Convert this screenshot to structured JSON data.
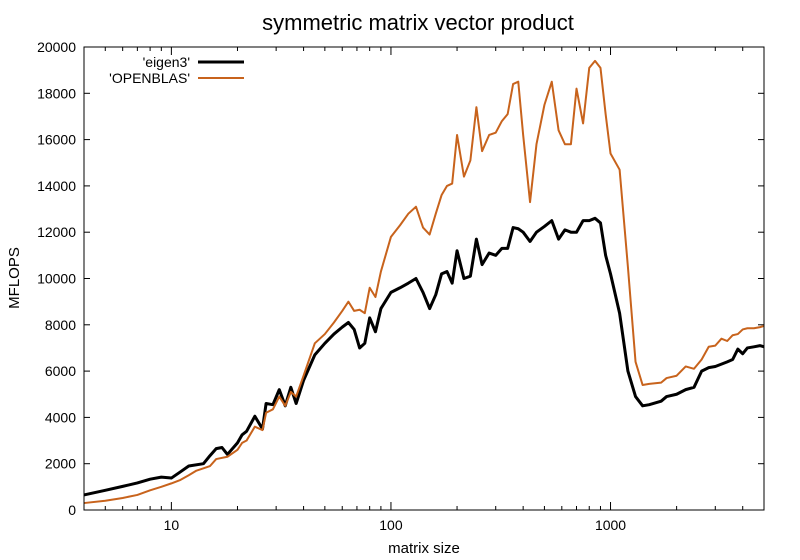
{
  "chart_data": {
    "type": "line",
    "title": "symmetric matrix vector product",
    "xlabel": "matrix size",
    "ylabel": "MFLOPS",
    "x_scale": "log",
    "xlim": [
      4,
      5000
    ],
    "ylim": [
      0,
      20000
    ],
    "x_ticks": [
      10,
      100,
      1000
    ],
    "x_tick_labels": [
      "10",
      "100",
      "1000"
    ],
    "y_ticks": [
      0,
      2000,
      4000,
      6000,
      8000,
      10000,
      12000,
      14000,
      16000,
      18000,
      20000
    ],
    "y_tick_labels": [
      "0",
      "2000",
      "4000",
      "6000",
      "8000",
      "10000",
      "12000",
      "14000",
      "16000",
      "18000",
      "20000"
    ],
    "grid": false,
    "legend_position": "top-left",
    "series": [
      {
        "name": "'eigen3'",
        "color": "#000000",
        "points": [
          [
            4,
            650
          ],
          [
            5,
            850
          ],
          [
            6,
            1020
          ],
          [
            7,
            1170
          ],
          [
            8,
            1330
          ],
          [
            9,
            1420
          ],
          [
            10,
            1380
          ],
          [
            11,
            1650
          ],
          [
            12,
            1900
          ],
          [
            14,
            2000
          ],
          [
            15,
            2350
          ],
          [
            16,
            2650
          ],
          [
            17,
            2700
          ],
          [
            18,
            2400
          ],
          [
            20,
            2900
          ],
          [
            21,
            3250
          ],
          [
            22,
            3400
          ],
          [
            24,
            4050
          ],
          [
            26,
            3500
          ],
          [
            27,
            4600
          ],
          [
            29,
            4550
          ],
          [
            31,
            5200
          ],
          [
            33,
            4500
          ],
          [
            35,
            5300
          ],
          [
            37,
            4600
          ],
          [
            40,
            5600
          ],
          [
            45,
            6700
          ],
          [
            50,
            7200
          ],
          [
            55,
            7600
          ],
          [
            60,
            7900
          ],
          [
            64,
            8100
          ],
          [
            68,
            7800
          ],
          [
            72,
            7000
          ],
          [
            76,
            7200
          ],
          [
            80,
            8300
          ],
          [
            85,
            7700
          ],
          [
            90,
            8700
          ],
          [
            100,
            9400
          ],
          [
            110,
            9600
          ],
          [
            120,
            9800
          ],
          [
            130,
            10000
          ],
          [
            140,
            9400
          ],
          [
            150,
            8700
          ],
          [
            160,
            9300
          ],
          [
            170,
            10200
          ],
          [
            180,
            10300
          ],
          [
            190,
            9800
          ],
          [
            200,
            11200
          ],
          [
            215,
            10000
          ],
          [
            230,
            10100
          ],
          [
            245,
            11700
          ],
          [
            260,
            10600
          ],
          [
            280,
            11100
          ],
          [
            300,
            11000
          ],
          [
            320,
            11300
          ],
          [
            340,
            11300
          ],
          [
            360,
            12200
          ],
          [
            380,
            12150
          ],
          [
            400,
            12000
          ],
          [
            430,
            11600
          ],
          [
            460,
            12000
          ],
          [
            500,
            12250
          ],
          [
            540,
            12500
          ],
          [
            580,
            11700
          ],
          [
            620,
            12100
          ],
          [
            660,
            12000
          ],
          [
            700,
            12000
          ],
          [
            750,
            12500
          ],
          [
            800,
            12500
          ],
          [
            850,
            12600
          ],
          [
            900,
            12400
          ],
          [
            950,
            11000
          ],
          [
            1000,
            10200
          ],
          [
            1100,
            8500
          ],
          [
            1200,
            6000
          ],
          [
            1300,
            4900
          ],
          [
            1400,
            4500
          ],
          [
            1500,
            4550
          ],
          [
            1700,
            4700
          ],
          [
            1800,
            4900
          ],
          [
            2000,
            5000
          ],
          [
            2200,
            5200
          ],
          [
            2400,
            5300
          ],
          [
            2600,
            6000
          ],
          [
            2800,
            6150
          ],
          [
            3000,
            6200
          ],
          [
            3200,
            6300
          ],
          [
            3400,
            6400
          ],
          [
            3600,
            6500
          ],
          [
            3800,
            6950
          ],
          [
            4000,
            6750
          ],
          [
            4200,
            7000
          ],
          [
            4500,
            7050
          ],
          [
            4800,
            7100
          ],
          [
            5000,
            7050
          ]
        ]
      },
      {
        "name": "'OPENBLAS'",
        "color": "#c8631c",
        "points": [
          [
            4,
            300
          ],
          [
            5,
            400
          ],
          [
            6,
            520
          ],
          [
            7,
            650
          ],
          [
            8,
            850
          ],
          [
            9,
            1000
          ],
          [
            10,
            1150
          ],
          [
            11,
            1300
          ],
          [
            12,
            1500
          ],
          [
            13,
            1700
          ],
          [
            14,
            1800
          ],
          [
            15,
            1900
          ],
          [
            16,
            2200
          ],
          [
            18,
            2300
          ],
          [
            20,
            2600
          ],
          [
            21,
            2900
          ],
          [
            22,
            3000
          ],
          [
            24,
            3600
          ],
          [
            26,
            3450
          ],
          [
            27,
            4200
          ],
          [
            29,
            4350
          ],
          [
            31,
            4900
          ],
          [
            33,
            4500
          ],
          [
            35,
            5100
          ],
          [
            37,
            4900
          ],
          [
            40,
            5800
          ],
          [
            45,
            7200
          ],
          [
            50,
            7600
          ],
          [
            55,
            8100
          ],
          [
            60,
            8600
          ],
          [
            64,
            9000
          ],
          [
            68,
            8600
          ],
          [
            72,
            8650
          ],
          [
            76,
            8500
          ],
          [
            80,
            9600
          ],
          [
            85,
            9200
          ],
          [
            90,
            10300
          ],
          [
            100,
            11800
          ],
          [
            110,
            12300
          ],
          [
            120,
            12800
          ],
          [
            130,
            13100
          ],
          [
            140,
            12200
          ],
          [
            150,
            11900
          ],
          [
            160,
            12800
          ],
          [
            170,
            13600
          ],
          [
            180,
            14000
          ],
          [
            190,
            14100
          ],
          [
            200,
            16200
          ],
          [
            215,
            14400
          ],
          [
            230,
            15100
          ],
          [
            245,
            17400
          ],
          [
            260,
            15500
          ],
          [
            280,
            16200
          ],
          [
            300,
            16300
          ],
          [
            320,
            16800
          ],
          [
            340,
            17100
          ],
          [
            360,
            18400
          ],
          [
            380,
            18500
          ],
          [
            400,
            16200
          ],
          [
            430,
            13300
          ],
          [
            460,
            15800
          ],
          [
            500,
            17500
          ],
          [
            540,
            18500
          ],
          [
            580,
            16400
          ],
          [
            620,
            15800
          ],
          [
            660,
            15800
          ],
          [
            700,
            18200
          ],
          [
            750,
            16700
          ],
          [
            800,
            19100
          ],
          [
            850,
            19400
          ],
          [
            900,
            19100
          ],
          [
            950,
            17100
          ],
          [
            1000,
            15400
          ],
          [
            1100,
            14700
          ],
          [
            1200,
            10500
          ],
          [
            1300,
            6400
          ],
          [
            1400,
            5400
          ],
          [
            1500,
            5450
          ],
          [
            1700,
            5500
          ],
          [
            1800,
            5700
          ],
          [
            2000,
            5800
          ],
          [
            2200,
            6200
          ],
          [
            2400,
            6100
          ],
          [
            2600,
            6500
          ],
          [
            2800,
            7050
          ],
          [
            3000,
            7100
          ],
          [
            3200,
            7400
          ],
          [
            3400,
            7300
          ],
          [
            3600,
            7550
          ],
          [
            3800,
            7600
          ],
          [
            4000,
            7800
          ],
          [
            4200,
            7850
          ],
          [
            4500,
            7850
          ],
          [
            4800,
            7900
          ],
          [
            5000,
            7950
          ]
        ]
      }
    ]
  }
}
